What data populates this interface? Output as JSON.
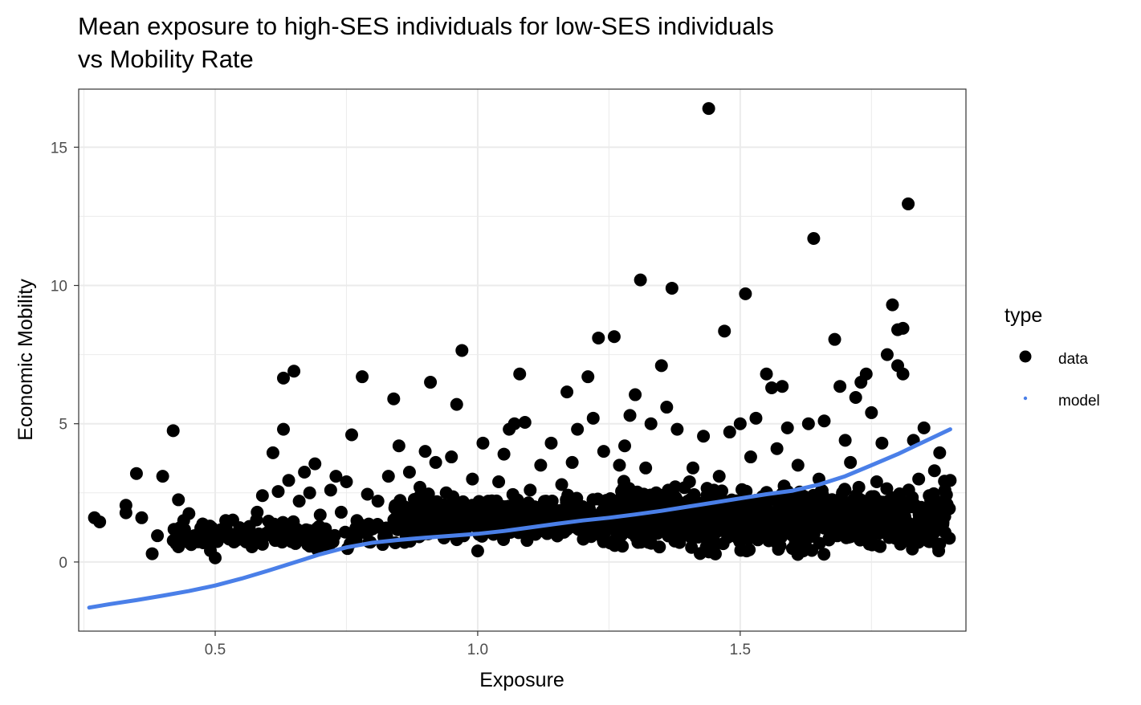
{
  "chart_data": {
    "type": "scatter",
    "title_lines": [
      "Mean exposure to high-SES individuals for low-SES individuals",
      "vs Mobility Rate"
    ],
    "xlabel": "Exposure",
    "ylabel": "Economic Mobility",
    "xlim": [
      0.24,
      1.93
    ],
    "ylim": [
      -2.5,
      17.1
    ],
    "x_ticks": [
      0.5,
      1.0,
      1.5
    ],
    "x_tick_labels": [
      "0.5",
      "1.0",
      "1.5"
    ],
    "y_ticks": [
      0,
      5,
      10,
      15
    ],
    "y_tick_labels": [
      "0",
      "5",
      "10",
      "15"
    ],
    "grid": true,
    "legend": {
      "title": "type",
      "position": "right",
      "entries": [
        {
          "label": "data",
          "color": "#000000",
          "shape": "point"
        },
        {
          "label": "model",
          "color": "#4a7fe8",
          "shape": "small-point"
        }
      ]
    },
    "series": [
      {
        "name": "data",
        "type": "scatter",
        "color": "#000000",
        "points": [
          [
            0.27,
            1.6
          ],
          [
            0.28,
            1.45
          ],
          [
            0.33,
            2.05
          ],
          [
            0.33,
            1.78
          ],
          [
            0.35,
            3.2
          ],
          [
            0.36,
            1.6
          ],
          [
            0.38,
            0.3
          ],
          [
            0.39,
            0.95
          ],
          [
            0.4,
            3.1
          ],
          [
            0.42,
            4.75
          ],
          [
            0.43,
            2.25
          ],
          [
            0.44,
            1.5
          ],
          [
            0.45,
            1.75
          ],
          [
            0.43,
            0.55
          ],
          [
            0.45,
            0.7
          ],
          [
            0.46,
            0.95
          ],
          [
            0.48,
            1.0
          ],
          [
            0.49,
            1.3
          ],
          [
            0.5,
            0.15
          ],
          [
            0.52,
            1.5
          ],
          [
            0.54,
            0.8
          ],
          [
            0.55,
            1.2
          ],
          [
            0.57,
            0.55
          ],
          [
            0.58,
            1.8
          ],
          [
            0.59,
            2.4
          ],
          [
            0.6,
            1.0
          ],
          [
            0.61,
            3.95
          ],
          [
            0.62,
            2.55
          ],
          [
            0.63,
            4.8
          ],
          [
            0.63,
            6.65
          ],
          [
            0.65,
            6.9
          ],
          [
            0.64,
            2.95
          ],
          [
            0.66,
            2.2
          ],
          [
            0.67,
            3.25
          ],
          [
            0.68,
            2.5
          ],
          [
            0.69,
            3.55
          ],
          [
            0.7,
            1.7
          ],
          [
            0.71,
            1.2
          ],
          [
            0.72,
            2.6
          ],
          [
            0.73,
            3.1
          ],
          [
            0.74,
            1.8
          ],
          [
            0.75,
            2.9
          ],
          [
            0.76,
            4.6
          ],
          [
            0.77,
            1.5
          ],
          [
            0.78,
            6.7
          ],
          [
            0.79,
            2.45
          ],
          [
            0.8,
            1.2
          ],
          [
            0.81,
            2.2
          ],
          [
            0.83,
            3.1
          ],
          [
            0.84,
            5.9
          ],
          [
            0.85,
            4.2
          ],
          [
            0.86,
            2.0
          ],
          [
            0.87,
            3.25
          ],
          [
            0.88,
            1.0
          ],
          [
            0.89,
            2.7
          ],
          [
            0.9,
            4.0
          ],
          [
            0.91,
            6.5
          ],
          [
            0.92,
            3.6
          ],
          [
            0.93,
            1.8
          ],
          [
            0.94,
            2.5
          ],
          [
            0.95,
            3.8
          ],
          [
            0.96,
            5.7
          ],
          [
            0.97,
            7.65
          ],
          [
            0.98,
            1.4
          ],
          [
            0.99,
            3.0
          ],
          [
            1.0,
            0.4
          ],
          [
            1.01,
            4.3
          ],
          [
            1.02,
            2.2
          ],
          [
            1.03,
            1.0
          ],
          [
            1.04,
            2.9
          ],
          [
            1.05,
            3.9
          ],
          [
            1.06,
            4.8
          ],
          [
            1.07,
            5.0
          ],
          [
            1.08,
            6.8
          ],
          [
            1.09,
            5.05
          ],
          [
            1.1,
            2.6
          ],
          [
            1.11,
            1.0
          ],
          [
            1.12,
            3.5
          ],
          [
            1.13,
            2.2
          ],
          [
            1.14,
            4.3
          ],
          [
            1.15,
            1.1
          ],
          [
            1.16,
            2.8
          ],
          [
            1.17,
            6.15
          ],
          [
            1.18,
            3.6
          ],
          [
            1.19,
            4.8
          ],
          [
            1.2,
            2.0
          ],
          [
            1.21,
            6.7
          ],
          [
            1.22,
            5.2
          ],
          [
            1.23,
            8.1
          ],
          [
            1.24,
            4.0
          ],
          [
            1.25,
            1.2
          ],
          [
            1.26,
            8.15
          ],
          [
            1.27,
            3.5
          ],
          [
            1.28,
            4.2
          ],
          [
            1.29,
            5.3
          ],
          [
            1.3,
            6.05
          ],
          [
            1.31,
            10.2
          ],
          [
            1.32,
            3.4
          ],
          [
            1.33,
            5.0
          ],
          [
            1.34,
            2.5
          ],
          [
            1.35,
            7.1
          ],
          [
            1.36,
            5.6
          ],
          [
            1.37,
            9.9
          ],
          [
            1.38,
            4.8
          ],
          [
            1.39,
            1.0
          ],
          [
            1.4,
            2.2
          ],
          [
            1.41,
            3.4
          ],
          [
            1.42,
            0.9
          ],
          [
            1.43,
            4.55
          ],
          [
            1.44,
            16.4
          ],
          [
            1.45,
            2.6
          ],
          [
            1.46,
            3.1
          ],
          [
            1.47,
            8.35
          ],
          [
            1.48,
            4.7
          ],
          [
            1.49,
            1.5
          ],
          [
            1.5,
            5.0
          ],
          [
            1.51,
            9.7
          ],
          [
            1.52,
            3.8
          ],
          [
            1.53,
            5.2
          ],
          [
            1.54,
            1.0
          ],
          [
            1.55,
            6.8
          ],
          [
            1.56,
            6.3
          ],
          [
            1.57,
            4.1
          ],
          [
            1.58,
            6.35
          ],
          [
            1.59,
            4.85
          ],
          [
            1.6,
            2.0
          ],
          [
            1.61,
            3.5
          ],
          [
            1.62,
            0.4
          ],
          [
            1.63,
            5.0
          ],
          [
            1.64,
            11.7
          ],
          [
            1.65,
            3.0
          ],
          [
            1.66,
            5.1
          ],
          [
            1.67,
            2.2
          ],
          [
            1.68,
            8.05
          ],
          [
            1.69,
            6.35
          ],
          [
            1.7,
            4.4
          ],
          [
            1.71,
            3.6
          ],
          [
            1.72,
            5.95
          ],
          [
            1.73,
            6.5
          ],
          [
            1.74,
            6.8
          ],
          [
            1.75,
            5.4
          ],
          [
            1.76,
            2.9
          ],
          [
            1.77,
            4.3
          ],
          [
            1.78,
            7.5
          ],
          [
            1.79,
            9.3
          ],
          [
            1.8,
            8.4
          ],
          [
            1.8,
            7.1
          ],
          [
            1.81,
            8.45
          ],
          [
            1.81,
            6.8
          ],
          [
            1.82,
            12.95
          ],
          [
            1.83,
            4.4
          ],
          [
            1.84,
            3.0
          ],
          [
            1.85,
            4.85
          ],
          [
            1.86,
            2.4
          ],
          [
            1.87,
            3.3
          ],
          [
            1.88,
            3.95
          ],
          [
            1.89,
            2.6
          ],
          [
            1.9,
            2.95
          ],
          [
            1.88,
            0.65
          ]
        ],
        "dense_band": [
          {
            "x_from": 0.42,
            "x_to": 0.84,
            "y_from": 0.35,
            "y_to": 1.7,
            "count": 140
          },
          {
            "x_from": 0.84,
            "x_to": 1.25,
            "y_from": 0.5,
            "y_to": 2.7,
            "count": 380
          },
          {
            "x_from": 1.25,
            "x_to": 1.9,
            "y_from": 0.05,
            "y_to": 3.1,
            "count": 760
          }
        ]
      },
      {
        "name": "model",
        "type": "line",
        "color": "#4a7fe8",
        "x": [
          0.26,
          0.3,
          0.35,
          0.4,
          0.45,
          0.5,
          0.55,
          0.6,
          0.65,
          0.7,
          0.75,
          0.8,
          0.85,
          0.9,
          0.95,
          1.0,
          1.05,
          1.1,
          1.15,
          1.2,
          1.25,
          1.3,
          1.35,
          1.4,
          1.45,
          1.5,
          1.55,
          1.6,
          1.65,
          1.7,
          1.75,
          1.8,
          1.85,
          1.9
        ],
        "y": [
          -1.65,
          -1.52,
          -1.38,
          -1.22,
          -1.05,
          -0.85,
          -0.6,
          -0.32,
          -0.02,
          0.28,
          0.53,
          0.7,
          0.8,
          0.88,
          0.95,
          1.02,
          1.12,
          1.25,
          1.38,
          1.5,
          1.6,
          1.72,
          1.85,
          2.0,
          2.15,
          2.3,
          2.45,
          2.58,
          2.8,
          3.1,
          3.5,
          3.9,
          4.35,
          4.8
        ]
      }
    ]
  }
}
